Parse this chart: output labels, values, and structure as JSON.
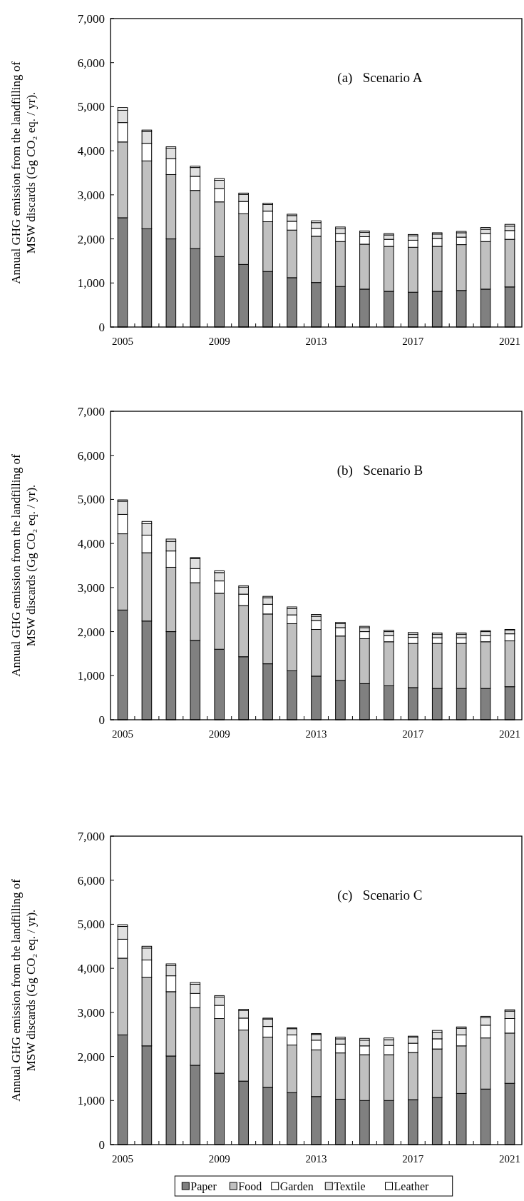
{
  "chart_data": [
    {
      "type": "bar",
      "stacked": true,
      "ylabel": "Annual GHG emission from the landfilling of MSW discards (Gg CO₂ eq. / yr).",
      "annotations": [
        "(a)   Scenario A"
      ],
      "categories": [
        "2005",
        null,
        null,
        null,
        "2009",
        null,
        null,
        null,
        "2013",
        null,
        null,
        null,
        "2017",
        null,
        null,
        null,
        "2021"
      ],
      "ylim": [
        0,
        7000
      ],
      "yticks": [
        {
          "value": 0,
          "label": "0"
        },
        {
          "value": 1000,
          "label": "1,000"
        },
        {
          "value": 2000,
          "label": "2,000"
        },
        {
          "value": 3000,
          "label": "3,000"
        },
        {
          "value": 4000,
          "label": "4,000"
        },
        {
          "value": 5000,
          "label": "5,000"
        },
        {
          "value": 6000,
          "label": "6,000"
        },
        {
          "value": 7000,
          "label": "7,000"
        }
      ],
      "legend": false,
      "series": [
        {
          "color": "#808080",
          "values": [
            2480,
            2230,
            2000,
            1780,
            1600,
            1420,
            1260,
            1120,
            1010,
            920,
            860,
            810,
            790,
            810,
            830,
            860,
            910
          ]
        },
        {
          "color": "#c0c0c0",
          "values": [
            1720,
            1540,
            1460,
            1320,
            1240,
            1150,
            1130,
            1080,
            1050,
            1020,
            1020,
            1020,
            1020,
            1020,
            1040,
            1080,
            1080
          ]
        },
        {
          "color": "#ffffff",
          "values": [
            440,
            400,
            360,
            320,
            300,
            280,
            240,
            200,
            180,
            180,
            170,
            160,
            160,
            180,
            170,
            180,
            200
          ]
        },
        {
          "color": "#e0e0e0",
          "values": [
            280,
            270,
            240,
            200,
            190,
            160,
            150,
            130,
            130,
            110,
            100,
            100,
            100,
            100,
            100,
            100,
            100
          ]
        },
        {
          "color": "#ffffff",
          "values": [
            60,
            30,
            30,
            30,
            40,
            30,
            30,
            30,
            40,
            40,
            30,
            30,
            30,
            30,
            30,
            40,
            40
          ]
        }
      ]
    },
    {
      "type": "bar",
      "stacked": true,
      "ylabel": "Annual GHG emission from the landfilling of MSW discards (Gg CO₂ eq. / yr).",
      "annotations": [
        "(b)   Scenario B"
      ],
      "categories": [
        "2005",
        null,
        null,
        null,
        "2009",
        null,
        null,
        null,
        "2013",
        null,
        null,
        null,
        "2017",
        null,
        null,
        null,
        "2021"
      ],
      "ylim": [
        0,
        7000
      ],
      "yticks": [
        {
          "value": 0,
          "label": "0"
        },
        {
          "value": 1000,
          "label": "1,000"
        },
        {
          "value": 2000,
          "label": "2,000"
        },
        {
          "value": 3000,
          "label": "3,000"
        },
        {
          "value": 4000,
          "label": "4,000"
        },
        {
          "value": 5000,
          "label": "5,000"
        },
        {
          "value": 6000,
          "label": "6,000"
        },
        {
          "value": 7000,
          "label": "7,000"
        }
      ],
      "legend": false,
      "series": [
        {
          "color": "#808080",
          "values": [
            2490,
            2240,
            2000,
            1800,
            1600,
            1430,
            1270,
            1110,
            990,
            890,
            820,
            770,
            730,
            710,
            710,
            710,
            750
          ]
        },
        {
          "color": "#c0c0c0",
          "values": [
            1730,
            1550,
            1460,
            1310,
            1270,
            1160,
            1130,
            1070,
            1060,
            1010,
            1020,
            1000,
            1000,
            1020,
            1020,
            1060,
            1040
          ]
        },
        {
          "color": "#ffffff",
          "values": [
            440,
            400,
            370,
            320,
            280,
            260,
            220,
            200,
            200,
            190,
            160,
            140,
            140,
            130,
            130,
            140,
            160
          ]
        },
        {
          "color": "#e0e0e0",
          "values": [
            300,
            260,
            220,
            230,
            190,
            160,
            150,
            140,
            100,
            90,
            90,
            90,
            70,
            80,
            80,
            90,
            90
          ]
        },
        {
          "color": "#ffffff",
          "values": [
            30,
            50,
            50,
            20,
            40,
            30,
            30,
            40,
            40,
            30,
            30,
            30,
            40,
            30,
            30,
            20,
            10
          ]
        }
      ]
    },
    {
      "type": "bar",
      "stacked": true,
      "ylabel": "Annual GHG emission from the landfilling of MSW discards (Gg CO₂ eq. / yr).",
      "annotations": [
        "(c)   Scenario C"
      ],
      "categories": [
        "2005",
        null,
        null,
        null,
        "2009",
        null,
        null,
        null,
        "2013",
        null,
        null,
        null,
        "2017",
        null,
        null,
        null,
        "2021"
      ],
      "ylim": [
        0,
        7000
      ],
      "yticks": [
        {
          "value": 0,
          "label": "0"
        },
        {
          "value": 1000,
          "label": "1,000"
        },
        {
          "value": 2000,
          "label": "2,000"
        },
        {
          "value": 3000,
          "label": "3,000"
        },
        {
          "value": 4000,
          "label": "4,000"
        },
        {
          "value": 5000,
          "label": "5,000"
        },
        {
          "value": 6000,
          "label": "6,000"
        },
        {
          "value": 7000,
          "label": "7,000"
        }
      ],
      "legend": "bottom",
      "series": [
        {
          "name": "Paper",
          "color": "#808080",
          "values": [
            2490,
            2240,
            2010,
            1800,
            1620,
            1440,
            1300,
            1180,
            1090,
            1030,
            1000,
            1000,
            1020,
            1070,
            1160,
            1260,
            1390
          ]
        },
        {
          "name": "Food",
          "color": "#c0c0c0",
          "values": [
            1740,
            1560,
            1460,
            1310,
            1240,
            1160,
            1140,
            1080,
            1060,
            1050,
            1040,
            1040,
            1070,
            1100,
            1080,
            1160,
            1140
          ]
        },
        {
          "name": "Garden",
          "color": "#ffffff",
          "values": [
            430,
            390,
            360,
            320,
            300,
            270,
            240,
            230,
            220,
            200,
            200,
            210,
            210,
            230,
            250,
            290,
            330
          ]
        },
        {
          "name": "Textile",
          "color": "#e0e0e0",
          "values": [
            290,
            270,
            230,
            210,
            190,
            170,
            170,
            140,
            130,
            120,
            130,
            130,
            140,
            150,
            150,
            170,
            170
          ]
        },
        {
          "name": "Leather",
          "color": "#ffffff",
          "values": [
            40,
            40,
            40,
            40,
            30,
            30,
            20,
            20,
            20,
            40,
            40,
            40,
            20,
            40,
            30,
            30,
            30
          ]
        }
      ]
    }
  ]
}
